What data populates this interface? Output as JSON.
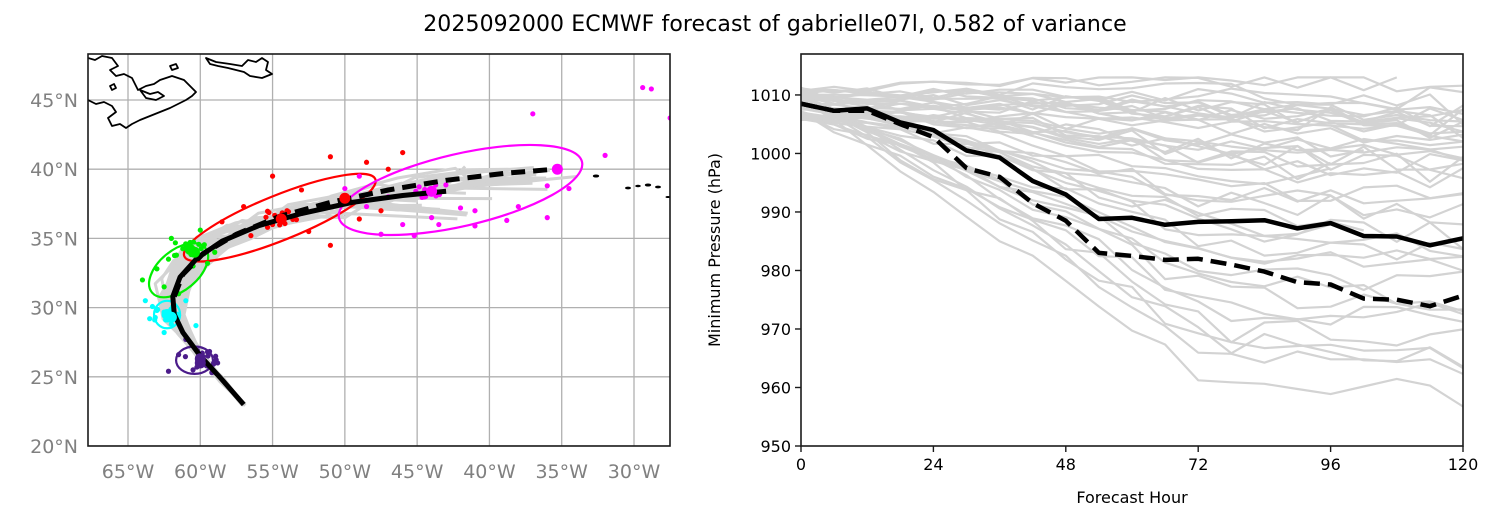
{
  "title": "2025092000 ECMWF forecast of gabrielle07l, 0.582 of variance",
  "colors": {
    "ensemble": "#d3d3d3",
    "deterministic": "#000000",
    "grid": "#b0b0b0",
    "tick_label_map": "#808080",
    "period_colors": [
      "#4b1c8a",
      "#00ffff",
      "#00ee00",
      "#ff0000",
      "#ff00ff"
    ]
  },
  "chart_data": [
    {
      "type": "scatter",
      "name": "track-map",
      "title": "",
      "xlabel": "",
      "ylabel": "",
      "xlim": [
        -68,
        -25
      ],
      "ylim": [
        20,
        48.5
      ],
      "grid": true,
      "xticks": [
        -65,
        -60,
        -55,
        -50,
        -45,
        -40,
        -35,
        -30
      ],
      "xtick_labels": [
        "65°W",
        "60°W",
        "55°W",
        "50°W",
        "45°W",
        "40°W",
        "35°W",
        "30°W"
      ],
      "yticks": [
        20,
        25,
        30,
        35,
        40,
        45
      ],
      "ytick_labels": [
        "20°N",
        "25°N",
        "30°N",
        "35°N",
        "40°N",
        "45°N"
      ],
      "mean_track_solid": [
        [
          -57.0,
          23.0
        ],
        [
          -58.5,
          24.8
        ],
        [
          -60.0,
          26.5
        ],
        [
          -61.2,
          28.2
        ],
        [
          -61.8,
          29.5
        ],
        [
          -61.9,
          30.8
        ],
        [
          -61.4,
          32.2
        ],
        [
          -60.2,
          33.6
        ],
        [
          -58.5,
          34.8
        ],
        [
          -56.0,
          35.9
        ],
        [
          -53.0,
          36.8
        ],
        [
          -49.5,
          37.6
        ],
        [
          -46.0,
          38.1
        ],
        [
          -43.0,
          38.4
        ]
      ],
      "mean_track_dashed": [
        [
          -61.8,
          30.8
        ],
        [
          -61.2,
          32.4
        ],
        [
          -59.8,
          33.9
        ],
        [
          -57.5,
          35.3
        ],
        [
          -54.5,
          36.6
        ],
        [
          -51.0,
          37.6
        ],
        [
          -47.0,
          38.5
        ],
        [
          -43.0,
          39.2
        ],
        [
          -39.0,
          39.7
        ],
        [
          -35.5,
          40.0
        ]
      ],
      "ellipses": [
        {
          "period": "24h",
          "color": "#4b1c8a",
          "center": [
            -60.4,
            26.2
          ],
          "semi_axes_deg": [
            1.7,
            1.1
          ],
          "angle_deg": 0
        },
        {
          "period": "48h",
          "color": "#00ffff",
          "center": [
            -62.3,
            29.5
          ],
          "semi_axes_deg": [
            1.2,
            1.1
          ],
          "angle_deg": 0
        },
        {
          "period": "72h",
          "color": "#00ee00",
          "center": [
            -61.5,
            32.7
          ],
          "semi_axes_deg": [
            3.2,
            1.6
          ],
          "angle_deg": 40
        },
        {
          "period": "96h",
          "color": "#ff0000",
          "center": [
            -54.5,
            36.5
          ],
          "semi_axes_deg": [
            9.5,
            1.8
          ],
          "angle_deg": 22
        },
        {
          "period": "120h",
          "color": "#ff00ff",
          "center": [
            -42.0,
            38.5
          ],
          "semi_axes_deg": [
            11.5,
            2.9
          ],
          "angle_deg": 13
        }
      ],
      "period_markers": [
        {
          "period": "24h",
          "color": "#4b1c8a",
          "deterministic": [
            -60.0,
            26.3
          ],
          "mean": [
            -60.0,
            26.0
          ]
        },
        {
          "period": "48h",
          "color": "#00ffff",
          "deterministic": [
            -62.3,
            29.5
          ],
          "mean": [
            -62.0,
            29.3
          ]
        },
        {
          "period": "72h",
          "color": "#00ee00",
          "deterministic": [
            -60.7,
            34.2
          ],
          "mean": [
            -60.4,
            34.0
          ]
        },
        {
          "period": "96h",
          "color": "#ff0000",
          "deterministic": [
            -54.4,
            36.4
          ],
          "mean": [
            -50.0,
            37.9
          ]
        },
        {
          "period": "120h",
          "color": "#ff00ff",
          "deterministic": [
            -44.0,
            38.4
          ],
          "mean": [
            -35.3,
            40.0
          ]
        }
      ],
      "member_points_120h": [
        [
          -29.4,
          45.9
        ],
        [
          -28.8,
          45.8
        ],
        [
          -27.5,
          43.7
        ],
        [
          -37.0,
          44.0
        ],
        [
          -32.0,
          41.0
        ],
        [
          -36.0,
          38.8
        ],
        [
          -34.5,
          38.6
        ],
        [
          -38.0,
          37.3
        ],
        [
          -36.0,
          36.5
        ],
        [
          -41.0,
          37.0
        ],
        [
          -42.0,
          37.2
        ],
        [
          -47.0,
          38.0
        ],
        [
          -47.5,
          35.3
        ],
        [
          -49.0,
          39.5
        ],
        [
          -46.0,
          36.0
        ],
        [
          -44.0,
          36.5
        ],
        [
          -43.5,
          36.0
        ],
        [
          -53.0,
          36.8
        ],
        [
          -50.0,
          38.6
        ],
        [
          -45.2,
          35.2
        ],
        [
          -38.8,
          36.3
        ],
        [
          -41.0,
          35.9
        ],
        [
          -48.5,
          37.3
        ],
        [
          -44.5,
          38.0
        ]
      ],
      "member_points_96h": [
        [
          -55.0,
          39.5
        ],
        [
          -51.0,
          40.9
        ],
        [
          -48.5,
          40.5
        ],
        [
          -46.0,
          41.2
        ],
        [
          -47.0,
          40.0
        ],
        [
          -53.0,
          38.5
        ],
        [
          -57.0,
          37.3
        ],
        [
          -55.0,
          36.0
        ],
        [
          -52.5,
          35.5
        ],
        [
          -51.0,
          34.5
        ],
        [
          -49.0,
          36.4
        ],
        [
          -56.5,
          35.2
        ],
        [
          -58.5,
          36.2
        ],
        [
          -54.0,
          37.0
        ],
        [
          -47.5,
          37.0
        ]
      ],
      "member_points_72h": [
        [
          -62.0,
          35.0
        ],
        [
          -61.0,
          34.5
        ],
        [
          -60.0,
          35.6
        ],
        [
          -59.5,
          33.2
        ],
        [
          -64.0,
          32.0
        ],
        [
          -63.0,
          32.8
        ],
        [
          -62.5,
          31.5
        ],
        [
          -61.5,
          31.0
        ],
        [
          -59.0,
          34.0
        ],
        [
          -62.2,
          33.5
        ],
        [
          -60.5,
          33.0
        ]
      ],
      "member_points_48h": [
        [
          -63.5,
          29.2
        ],
        [
          -63.8,
          30.5
        ],
        [
          -61.0,
          30.5
        ],
        [
          -60.3,
          28.7
        ],
        [
          -62.5,
          28.2
        ],
        [
          -62.0,
          28.8
        ],
        [
          -61.8,
          30.2
        ],
        [
          -63.0,
          29.8
        ]
      ],
      "member_points_24h": [
        [
          -61.5,
          26.6
        ],
        [
          -58.8,
          26.0
        ],
        [
          -59.2,
          25.3
        ],
        [
          -59.5,
          26.8
        ],
        [
          -60.5,
          25.5
        ],
        [
          -62.2,
          25.4
        ],
        [
          -61.0,
          27.7
        ],
        [
          -60.2,
          26.9
        ]
      ],
      "coastline": "Nova Scotia / Newfoundland (top-left), Azores (right)"
    },
    {
      "type": "line",
      "name": "pressure-plot",
      "title": "",
      "xlabel": "Forecast Hour",
      "ylabel": "Minimum Pressure (hPa)",
      "xlim": [
        0,
        120
      ],
      "ylim": [
        950,
        1017
      ],
      "grid": false,
      "xticks": [
        0,
        24,
        48,
        72,
        96,
        120
      ],
      "yticks": [
        950,
        960,
        970,
        980,
        990,
        1000,
        1010
      ],
      "x": [
        0,
        6,
        12,
        18,
        24,
        30,
        36,
        42,
        48,
        54,
        60,
        66,
        72,
        78,
        84,
        90,
        96,
        102,
        108,
        114,
        120
      ],
      "series": [
        {
          "name": "deterministic-solid",
          "style": "solid",
          "color": "#000000",
          "values": [
            1008.5,
            1007.3,
            1007.7,
            1005.3,
            1004.0,
            1000.5,
            999.3,
            995.3,
            993.0,
            988.8,
            989.0,
            987.8,
            988.3,
            988.4,
            988.6,
            987.2,
            988.1,
            985.9,
            985.8,
            984.3,
            985.5
          ]
        },
        {
          "name": "ensemble-mean-dashed",
          "style": "dashed",
          "color": "#000000",
          "values": [
            1008.5,
            1007.3,
            1007.3,
            1005.0,
            1002.8,
            997.5,
            996.0,
            991.5,
            988.5,
            983.0,
            982.5,
            981.8,
            982.0,
            981.0,
            979.8,
            978.0,
            977.6,
            975.2,
            975.0,
            973.9,
            975.7
          ]
        }
      ],
      "ensemble_members_count": 50,
      "ensemble_envelope_note": "Gray member traces spanning roughly 1013 to 953 hPa"
    }
  ]
}
